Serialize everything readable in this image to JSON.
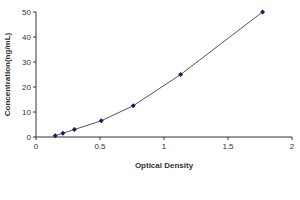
{
  "chart_data": {
    "type": "line",
    "x_label": "Optical Density",
    "y_label": "Concentration(ng/mL)",
    "x": [
      0.15,
      0.21,
      0.3,
      0.51,
      0.76,
      1.13,
      1.77
    ],
    "values": [
      0.5,
      1.5,
      3,
      6.5,
      12.5,
      25,
      50
    ],
    "color": "#1a1a6e",
    "marker": "diamond",
    "xlim": [
      0,
      2
    ],
    "xticks": [
      0,
      0.5,
      1,
      1.5,
      2
    ],
    "ylim": [
      0,
      50
    ],
    "yticks": [
      0,
      10,
      20,
      30,
      40,
      50
    ],
    "grid": false
  }
}
